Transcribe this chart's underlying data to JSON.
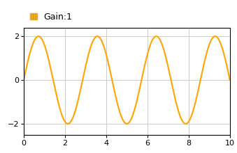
{
  "legend_label": "Gain:1",
  "line_color": "#FFA500",
  "background_color": "#ffffff",
  "grid_color": "#cccccc",
  "axes_edge_color": "#000000",
  "xlim": [
    0,
    10
  ],
  "ylim": [
    -2.5,
    2.4
  ],
  "xticks": [
    0,
    2,
    4,
    6,
    8,
    10
  ],
  "yticks": [
    -2,
    0,
    2
  ],
  "amplitude": 2,
  "frequency": 0.35,
  "x_start": 0,
  "x_end": 10,
  "num_points": 1000,
  "legend_marker_color": "#E6A817",
  "tick_fontsize": 8,
  "legend_fontsize": 9,
  "line_width": 1.5
}
